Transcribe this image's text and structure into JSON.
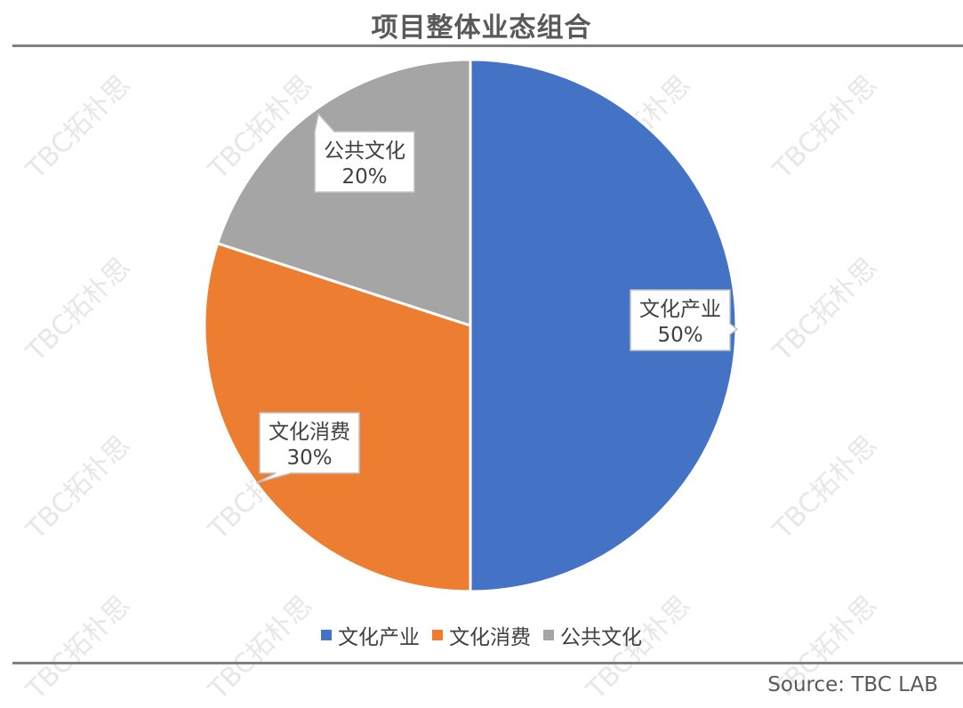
{
  "header": {
    "title": "项目整体业态组合"
  },
  "footer": {
    "source": "Source: TBC LAB"
  },
  "watermark": {
    "text": "TBC拓朴思"
  },
  "chart_data": {
    "type": "pie",
    "title": "项目整体业态组合",
    "slices": [
      {
        "name": "文化产业",
        "value": 50,
        "label": "50%",
        "color": "#4472C4"
      },
      {
        "name": "文化消费",
        "value": 30,
        "label": "30%",
        "color": "#ED7D31"
      },
      {
        "name": "公共文化",
        "value": 20,
        "label": "20%",
        "color": "#A5A5A5"
      }
    ],
    "legend_position": "bottom"
  }
}
